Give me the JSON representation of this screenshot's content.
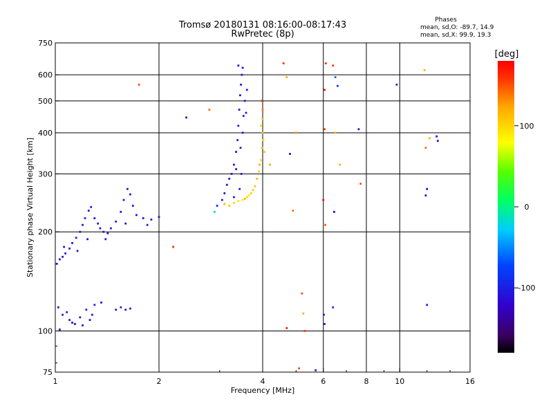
{
  "chart_data": {
    "type": "scatter",
    "title": "Tromsø 20180131 08:16:00-08:17:43",
    "subtitle": "RwPretec (8p)",
    "xlabel": "Frequency [MHz]",
    "ylabel": "Stationary phase Virtual Height [km]",
    "x_scale": "log",
    "y_scale": "log",
    "xlim": [
      1,
      16
    ],
    "ylim": [
      75,
      750
    ],
    "x_ticks": [
      1,
      2,
      4,
      6,
      8,
      10,
      16
    ],
    "y_ticks": [
      75,
      100,
      200,
      300,
      400,
      500,
      600,
      750
    ],
    "grid": true,
    "stats": {
      "heading": "Phases",
      "line_o": "mean, sd,O: -89.7, 14.9",
      "line_x": "mean, sd,X:  99.9, 19.3"
    },
    "colorbar": {
      "label": "[deg]",
      "ticks": [
        100,
        0,
        -100
      ],
      "range": [
        -180,
        180
      ],
      "colormap": "rainbow"
    },
    "series": [
      {
        "trace": "low-frequency lower trace",
        "points": [
          [
            1.02,
            118,
            -110
          ],
          [
            1.05,
            112,
            -105
          ],
          [
            1.08,
            114,
            -100
          ],
          [
            1.1,
            108,
            -108
          ],
          [
            1.14,
            105,
            -112
          ],
          [
            1.18,
            110,
            -104
          ],
          [
            1.2,
            104,
            -110
          ],
          [
            1.23,
            116,
            -102
          ],
          [
            1.26,
            108,
            -106
          ],
          [
            1.3,
            120,
            -100
          ],
          [
            1.28,
            112,
            -108
          ],
          [
            1.36,
            122,
            -104
          ],
          [
            1.5,
            116,
            -106
          ],
          [
            1.55,
            118,
            -102
          ],
          [
            1.6,
            116,
            -108
          ],
          [
            1.65,
            117,
            -104
          ],
          [
            1.03,
            101,
            -110
          ],
          [
            1.12,
            106,
            -112
          ]
        ]
      },
      {
        "trace": "low-frequency F trace",
        "points": [
          [
            1.01,
            160,
            -112
          ],
          [
            1.03,
            165,
            -108
          ],
          [
            1.05,
            168,
            -110
          ],
          [
            1.07,
            172,
            -104
          ],
          [
            1.1,
            178,
            -106
          ],
          [
            1.12,
            185,
            -112
          ],
          [
            1.15,
            192,
            -100
          ],
          [
            1.18,
            200,
            -104
          ],
          [
            1.2,
            210,
            -108
          ],
          [
            1.22,
            220,
            -100
          ],
          [
            1.25,
            232,
            -106
          ],
          [
            1.27,
            238,
            -102
          ],
          [
            1.3,
            220,
            -110
          ],
          [
            1.33,
            212,
            -104
          ],
          [
            1.35,
            205,
            -112
          ],
          [
            1.38,
            200,
            -106
          ],
          [
            1.42,
            198,
            -110
          ],
          [
            1.45,
            205,
            -104
          ],
          [
            1.5,
            215,
            -100
          ],
          [
            1.55,
            230,
            -108
          ],
          [
            1.58,
            250,
            -104
          ],
          [
            1.62,
            270,
            -106
          ],
          [
            1.65,
            260,
            -110
          ],
          [
            1.68,
            240,
            -104
          ],
          [
            1.72,
            225,
            -108
          ],
          [
            1.8,
            220,
            -106
          ],
          [
            1.9,
            218,
            -112
          ],
          [
            2.0,
            222,
            -104
          ],
          [
            1.06,
            180,
            -110
          ],
          [
            1.16,
            175,
            -108
          ],
          [
            1.24,
            190,
            -104
          ],
          [
            1.4,
            190,
            -110
          ],
          [
            1.6,
            212,
            -108
          ],
          [
            1.85,
            210,
            -104
          ]
        ]
      },
      {
        "trace": "O-mode F2 trace",
        "points": [
          [
            2.95,
            240,
            -90
          ],
          [
            3.05,
            250,
            -110
          ],
          [
            3.1,
            262,
            -112
          ],
          [
            3.15,
            278,
            -108
          ],
          [
            3.2,
            290,
            -104
          ],
          [
            3.25,
            300,
            -110
          ],
          [
            3.3,
            320,
            -106
          ],
          [
            3.35,
            350,
            -112
          ],
          [
            3.38,
            380,
            -104
          ],
          [
            3.4,
            420,
            -108
          ],
          [
            3.42,
            470,
            -110
          ],
          [
            3.44,
            520,
            -106
          ],
          [
            3.46,
            560,
            -104
          ],
          [
            3.48,
            600,
            -112
          ],
          [
            3.5,
            630,
            -108
          ],
          [
            3.4,
            640,
            -110
          ],
          [
            3.55,
            500,
            -104
          ],
          [
            3.52,
            450,
            -106
          ],
          [
            3.5,
            400,
            -110
          ],
          [
            3.45,
            360,
            -108
          ],
          [
            3.47,
            300,
            -104
          ],
          [
            3.43,
            270,
            -112
          ],
          [
            3.3,
            255,
            -100
          ],
          [
            3.6,
            540,
            -108
          ],
          [
            3.58,
            460,
            -106
          ],
          [
            3.35,
            310,
            -110
          ]
        ]
      },
      {
        "trace": "X-mode F2 trace",
        "points": [
          [
            3.1,
            243,
            115
          ],
          [
            3.2,
            240,
            110
          ],
          [
            3.3,
            245,
            100
          ],
          [
            3.4,
            248,
            95
          ],
          [
            3.5,
            250,
            90
          ],
          [
            3.6,
            255,
            100
          ],
          [
            3.7,
            262,
            105
          ],
          [
            3.8,
            275,
            110
          ],
          [
            3.85,
            290,
            115
          ],
          [
            3.9,
            305,
            100
          ],
          [
            3.95,
            330,
            95
          ],
          [
            3.98,
            360,
            105
          ],
          [
            4.0,
            400,
            110
          ],
          [
            4.0,
            440,
            115
          ],
          [
            3.95,
            420,
            100
          ],
          [
            4.02,
            380,
            95
          ],
          [
            4.05,
            350,
            110
          ],
          [
            3.92,
            320,
            120
          ],
          [
            3.75,
            268,
            105
          ],
          [
            3.55,
            252,
            115
          ],
          [
            3.65,
            258,
            90
          ],
          [
            4.0,
            470,
            135
          ],
          [
            3.97,
            500,
            150
          ]
        ]
      },
      {
        "trace": "scattered points",
        "points": [
          [
            1.75,
            560,
            150
          ],
          [
            2.2,
            180,
            160
          ],
          [
            2.4,
            445,
            -110
          ],
          [
            2.8,
            470,
            140
          ],
          [
            2.9,
            230,
            -20
          ],
          [
            4.2,
            320,
            120
          ],
          [
            4.6,
            650,
            160
          ],
          [
            4.7,
            590,
            120
          ],
          [
            4.8,
            345,
            -110
          ],
          [
            4.9,
            232,
            140
          ],
          [
            5.0,
            400,
            130
          ],
          [
            5.2,
            130,
            150
          ],
          [
            5.25,
            113,
            120
          ],
          [
            5.3,
            100,
            160
          ],
          [
            4.7,
            102,
            165
          ],
          [
            5.1,
            77,
            150
          ],
          [
            5.7,
            76,
            -100
          ],
          [
            6.1,
            650,
            160
          ],
          [
            6.05,
            540,
            175
          ],
          [
            6.05,
            410,
            160
          ],
          [
            6.0,
            250,
            175
          ],
          [
            6.08,
            210,
            145
          ],
          [
            6.02,
            112,
            -110
          ],
          [
            6.05,
            105,
            -110
          ],
          [
            6.4,
            640,
            160
          ],
          [
            6.45,
            230,
            -120
          ],
          [
            6.5,
            590,
            -60
          ],
          [
            6.4,
            118,
            -90
          ],
          [
            6.6,
            555,
            -80
          ],
          [
            6.7,
            320,
            120
          ],
          [
            6.5,
            400,
            120
          ],
          [
            7.6,
            410,
            -110
          ],
          [
            7.7,
            280,
            150
          ],
          [
            9.8,
            560,
            -90
          ],
          [
            11.8,
            620,
            120
          ],
          [
            11.9,
            360,
            140
          ],
          [
            12.0,
            270,
            -130
          ],
          [
            11.9,
            258,
            -120
          ],
          [
            12.0,
            120,
            -100
          ],
          [
            12.2,
            385,
            120
          ],
          [
            12.8,
            390,
            -120
          ],
          [
            12.9,
            378,
            -110
          ]
        ]
      }
    ]
  }
}
